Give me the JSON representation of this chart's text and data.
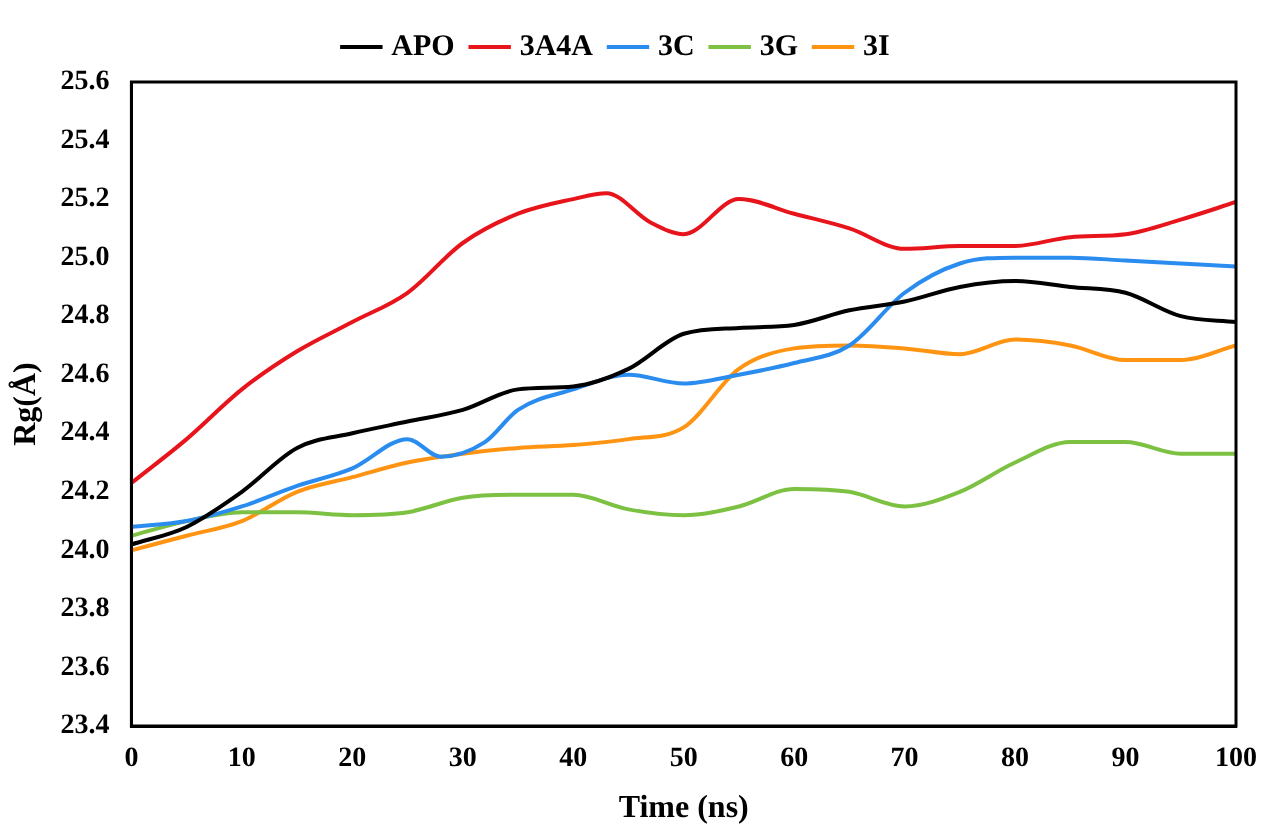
{
  "chart_data": {
    "type": "line",
    "xlabel": "Time (ns)",
    "ylabel": "Rg(Å)",
    "xlim": [
      0,
      100
    ],
    "xticks": [
      0,
      10,
      20,
      30,
      40,
      50,
      60,
      70,
      80,
      90,
      100
    ],
    "ylim": [
      23.4,
      25.6
    ],
    "yticks": [
      23.4,
      23.6,
      23.8,
      {
        "value": 24,
        "label": "24.0"
      },
      24.2,
      24.4,
      24.6,
      24.8,
      {
        "value": 25,
        "label": "25.0"
      },
      25.2,
      25.4,
      25.6
    ],
    "grid": false,
    "legend": "top",
    "marker": "none",
    "line_style": "solid",
    "series": [
      {
        "name": "APO",
        "color": "#000000",
        "x": [
          0,
          5,
          10,
          15,
          20,
          25,
          30,
          35,
          40,
          45,
          50,
          55,
          60,
          65,
          70,
          75,
          80,
          85,
          90,
          95,
          100
        ],
        "values": [
          24.02,
          24.08,
          24.2,
          24.35,
          24.4,
          24.44,
          24.48,
          24.55,
          24.56,
          24.62,
          24.74,
          24.76,
          24.77,
          24.82,
          24.85,
          24.9,
          24.92,
          24.9,
          24.88,
          24.8,
          24.78
        ]
      },
      {
        "name": "3A4A",
        "color": "#e8141c",
        "x": [
          0,
          5,
          10,
          15,
          20,
          25,
          30,
          35,
          40,
          43,
          47,
          50,
          55,
          60,
          65,
          70,
          75,
          80,
          85,
          90,
          95,
          100
        ],
        "values": [
          24.23,
          24.38,
          24.55,
          24.68,
          24.78,
          24.88,
          25.05,
          25.15,
          25.2,
          25.22,
          25.12,
          25.08,
          25.2,
          25.15,
          25.1,
          25.03,
          25.04,
          25.04,
          25.07,
          25.08,
          25.13,
          25.19
        ]
      },
      {
        "name": "3C",
        "color": "#2b8cf0",
        "x": [
          0,
          5,
          10,
          15,
          20,
          25,
          28,
          32,
          35,
          40,
          45,
          50,
          55,
          60,
          65,
          70,
          75,
          80,
          85,
          90,
          95,
          100
        ],
        "values": [
          24.08,
          24.1,
          24.15,
          24.22,
          24.28,
          24.38,
          24.32,
          24.37,
          24.48,
          24.55,
          24.6,
          24.57,
          24.6,
          24.64,
          24.7,
          24.88,
          24.98,
          25.0,
          25.0,
          24.99,
          24.98,
          24.97
        ]
      },
      {
        "name": "3G",
        "color": "#7cc142",
        "x": [
          0,
          5,
          10,
          15,
          20,
          25,
          30,
          35,
          40,
          45,
          50,
          55,
          60,
          65,
          70,
          75,
          80,
          85,
          90,
          95,
          100
        ],
        "values": [
          24.05,
          24.1,
          24.13,
          24.13,
          24.12,
          24.13,
          24.18,
          24.19,
          24.19,
          24.14,
          24.12,
          24.15,
          24.21,
          24.2,
          24.15,
          24.2,
          24.3,
          24.37,
          24.37,
          24.33,
          24.33
        ]
      },
      {
        "name": "3I",
        "color": "#ff9412",
        "x": [
          0,
          5,
          10,
          15,
          20,
          25,
          30,
          35,
          40,
          45,
          50,
          55,
          60,
          65,
          70,
          75,
          80,
          85,
          90,
          95,
          100
        ],
        "values": [
          24.0,
          24.05,
          24.1,
          24.2,
          24.25,
          24.3,
          24.33,
          24.35,
          24.36,
          24.38,
          24.42,
          24.62,
          24.69,
          24.7,
          24.69,
          24.67,
          24.72,
          24.7,
          24.65,
          24.65,
          24.7
        ]
      }
    ]
  }
}
